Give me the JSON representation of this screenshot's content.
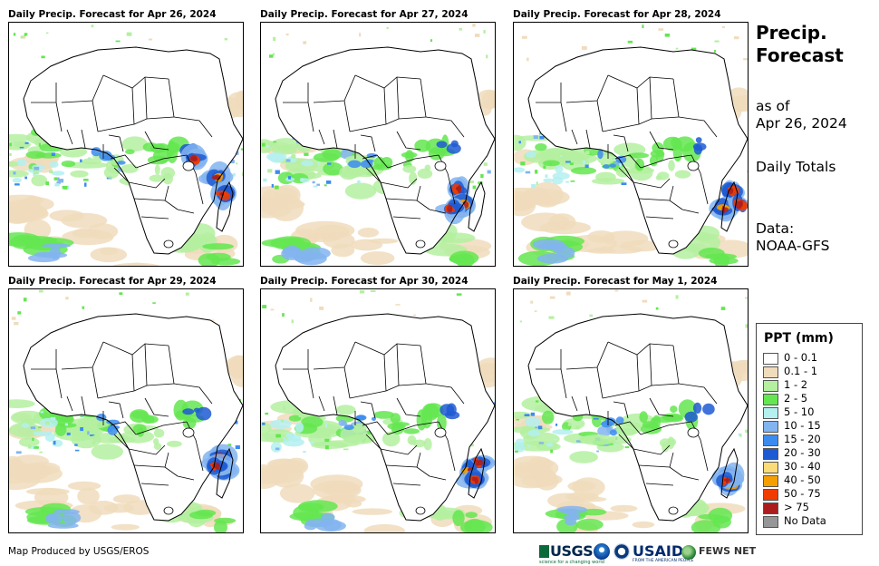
{
  "panels": [
    {
      "title": "Daily Precip. Forecast for Apr 26, 2024",
      "variant": 0
    },
    {
      "title": "Daily Precip. Forecast for Apr 27, 2024",
      "variant": 1
    },
    {
      "title": "Daily Precip. Forecast for Apr 28, 2024",
      "variant": 2
    },
    {
      "title": "Daily Precip. Forecast for Apr 29, 2024",
      "variant": 3
    },
    {
      "title": "Daily Precip. Forecast for Apr 30, 2024",
      "variant": 4
    },
    {
      "title": "Daily Precip. Forecast for May 1, 2024",
      "variant": 5
    }
  ],
  "side": {
    "title_line1": "Precip.",
    "title_line2": "Forecast",
    "asof_line1": "as of",
    "asof_line2": "Apr 26, 2024",
    "totals": "Daily Totals",
    "data_line1": "Data:",
    "data_line2": "NOAA-GFS"
  },
  "legend": {
    "title": "PPT (mm)",
    "items": [
      {
        "label": "0 - 0.1",
        "color": "#ffffff"
      },
      {
        "label": "0.1 - 1",
        "color": "#f0dcbc"
      },
      {
        "label": "1 - 2",
        "color": "#b4f0a0"
      },
      {
        "label": "2 - 5",
        "color": "#64e650"
      },
      {
        "label": "5 - 10",
        "color": "#b4f0f0"
      },
      {
        "label": "10 - 15",
        "color": "#82b4f0"
      },
      {
        "label": "15 - 20",
        "color": "#3c8cf0"
      },
      {
        "label": "20 - 30",
        "color": "#1e5ad2"
      },
      {
        "label": "30 - 40",
        "color": "#fadc78"
      },
      {
        "label": "40 - 50",
        "color": "#f5a000"
      },
      {
        "label": "50 - 75",
        "color": "#f03c00"
      },
      {
        "label": "> 75",
        "color": "#aa1e1e"
      },
      {
        "label": "No Data",
        "color": "#969696"
      }
    ]
  },
  "footer": {
    "credit": "Map Produced by USGS/EROS",
    "logo_usgs": "USGS",
    "logo_usgs_tag": "science for a changing world",
    "logo_usaid": "USAID",
    "logo_usaid_sub": "FROM THE AMERICAN PEOPLE",
    "logo_fews": "FEWS NET"
  }
}
